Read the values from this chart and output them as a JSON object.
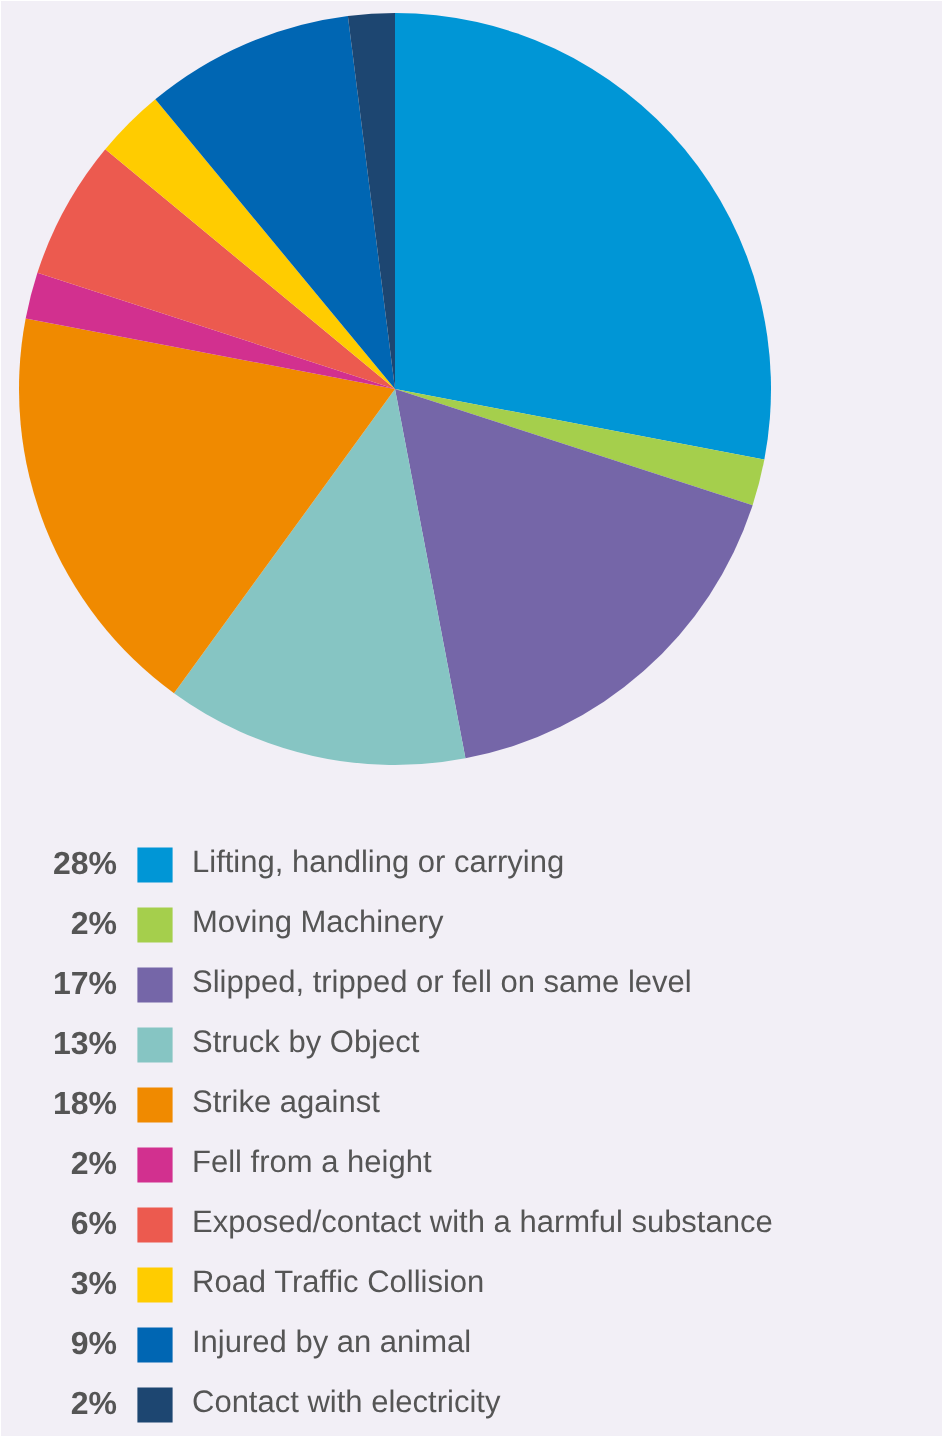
{
  "chart_data": {
    "type": "pie",
    "categories": [
      "Lifting, handling or carrying",
      "Moving Machinery",
      "Slipped, tripped or fell on same level",
      "Struck by Object",
      "Strike against",
      "Fell from a height",
      "Exposed/contact with a harmful substance",
      "Road Traffic Collision",
      "Injured by an animal",
      "Contact with electricity"
    ],
    "values": [
      28,
      2,
      17,
      13,
      18,
      2,
      6,
      3,
      9,
      2
    ],
    "value_labels": [
      "28%",
      "2%",
      "17%",
      "13%",
      "18%",
      "2%",
      "6%",
      "3%",
      "9%",
      "2%"
    ],
    "colors": [
      "#0096d6",
      "#a5cf4c",
      "#7566a8",
      "#86c5c3",
      "#f08a00",
      "#d2308f",
      "#ec5a4f",
      "#ffcc00",
      "#0066b3",
      "#1d4671"
    ],
    "legend": "bottom"
  }
}
